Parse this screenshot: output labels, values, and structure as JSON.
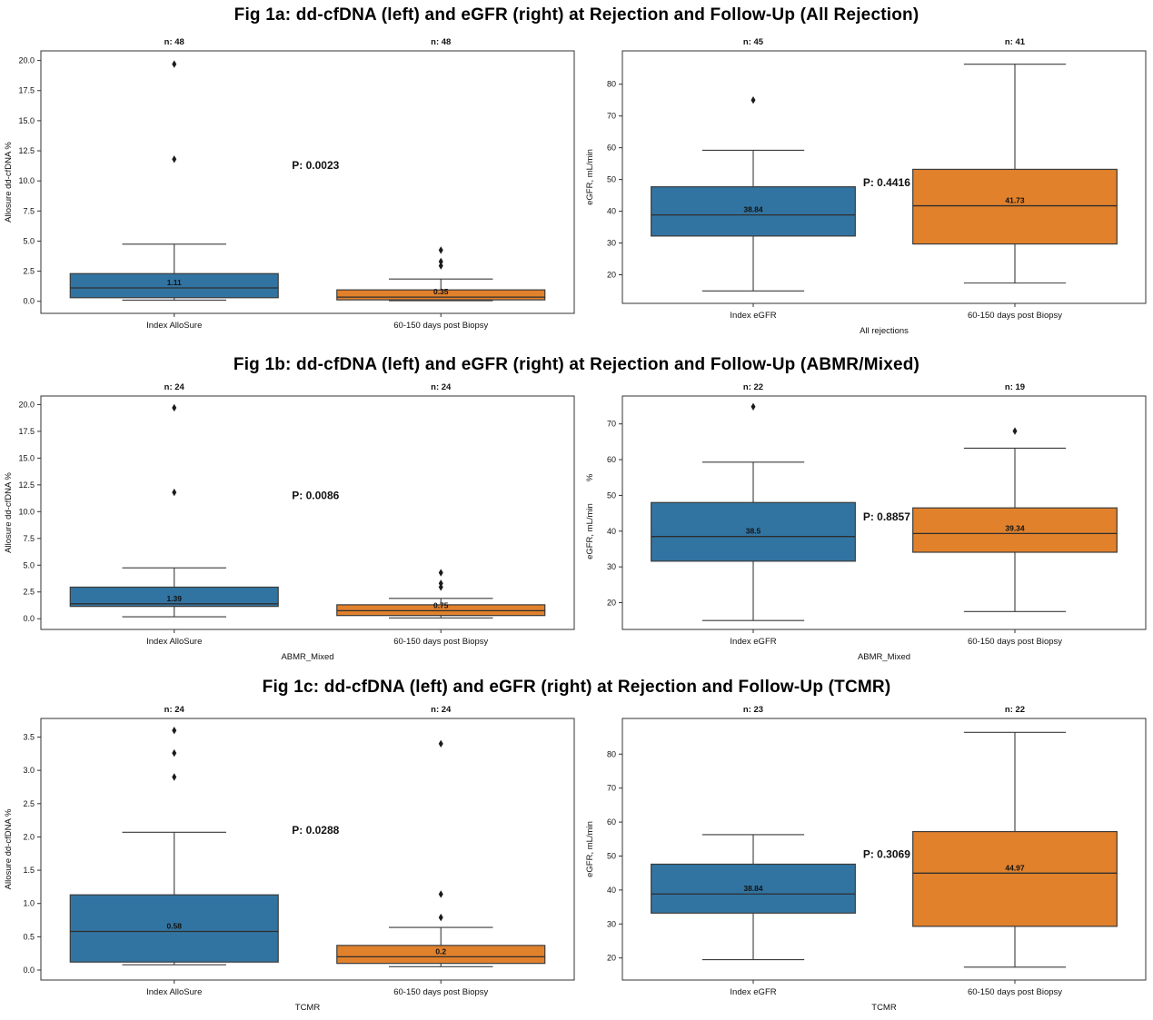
{
  "page": {
    "background": "#ffffff"
  },
  "colors": {
    "blue": "#3274a1",
    "orange": "#e1812c",
    "edge": "#3b3b3b",
    "median_line": "#2e2e2e",
    "whisker": "#3b3b3b",
    "frame": "#333333",
    "outlier": "#1b1b1b",
    "text": "#111111"
  },
  "titles": {
    "fig1a": "Fig 1a: dd-cfDNA (left) and eGFR (right) at Rejection and Follow-Up (All Rejection)",
    "fig1b": "Fig 1b: dd-cfDNA (left) and eGFR (right) at Rejection and Follow-Up (ABMR/Mixed)",
    "fig1c": "Fig 1c: dd-cfDNA (left) and eGFR (right) at Rejection and Follow-Up (TCMR)"
  },
  "chart_data": [
    {
      "id": "fig1a_ddcfdna",
      "type": "box",
      "figure": "fig1a",
      "title": "",
      "ylabel": "Allosure dd-cfDNA %",
      "xlabel": "",
      "ylim": [
        -1.0,
        20.8
      ],
      "grid": false,
      "ytick_values": [
        0.0,
        2.5,
        5.0,
        7.5,
        10.0,
        12.5,
        15.0,
        17.5,
        20.0
      ],
      "ytick_labels": [
        "0.0",
        "2.5",
        "5.0",
        "7.5",
        "10.0",
        "12.5",
        "15.0",
        "17.5",
        "20.0"
      ],
      "categories": [
        "Index AlloSure",
        "60-150 days post Biopsy"
      ],
      "n_labels": [
        "n: 48",
        "n: 48"
      ],
      "p_label": "P: 0.0023",
      "p_pos": {
        "x_frac": 0.515,
        "y": 11.3
      },
      "series": [
        {
          "name": "Index AlloSure",
          "color": "blue",
          "whisker_low": 0.1,
          "q1": 0.3,
          "median": 1.11,
          "q3": 2.3,
          "whisker_high": 4.75,
          "outliers": [
            11.8,
            19.7
          ],
          "median_label": "1.11"
        },
        {
          "name": "60-150 days post Biopsy",
          "color": "orange",
          "whisker_low": 0.05,
          "q1": 0.12,
          "median": 0.35,
          "q3": 0.95,
          "whisker_high": 1.85,
          "outliers": [
            2.95,
            3.3,
            4.25
          ],
          "median_label": "0.35"
        }
      ]
    },
    {
      "id": "fig1a_egfr",
      "type": "box",
      "figure": "fig1a",
      "title": "",
      "ylabel": "eGFR, mL/min",
      "xlabel": "All rejections",
      "ylim": [
        11.0,
        90.5
      ],
      "grid": false,
      "ytick_values": [
        20,
        30,
        40,
        50,
        60,
        70,
        80
      ],
      "ytick_labels": [
        "20",
        "30",
        "40",
        "50",
        "60",
        "70",
        "80"
      ],
      "categories": [
        "Index eGFR",
        "60-150 days post Biopsy"
      ],
      "n_labels": [
        "n: 45",
        "n: 41"
      ],
      "p_label": "P: 0.4416",
      "p_pos": {
        "x_frac": 0.505,
        "y": 49.0
      },
      "series": [
        {
          "name": "Index eGFR",
          "color": "blue",
          "whisker_low": 14.9,
          "q1": 32.2,
          "median": 38.84,
          "q3": 47.7,
          "whisker_high": 59.2,
          "outliers": [
            75.0
          ],
          "median_label": "38.84"
        },
        {
          "name": "60-150 days post Biopsy",
          "color": "orange",
          "whisker_low": 17.4,
          "q1": 29.7,
          "median": 41.73,
          "q3": 53.2,
          "whisker_high": 86.3,
          "outliers": [],
          "median_label": "41.73"
        }
      ]
    },
    {
      "id": "fig1b_ddcfdna",
      "type": "box",
      "figure": "fig1b",
      "title": "",
      "ylabel": "Allosure dd-cfDNA %",
      "xlabel": "ABMR_Mixed",
      "ylim": [
        -1.0,
        20.8
      ],
      "grid": false,
      "ytick_values": [
        0.0,
        2.5,
        5.0,
        7.5,
        10.0,
        12.5,
        15.0,
        17.5,
        20.0
      ],
      "ytick_labels": [
        "0.0",
        "2.5",
        "5.0",
        "7.5",
        "10.0",
        "12.5",
        "15.0",
        "17.5",
        "20.0"
      ],
      "categories": [
        "Index AlloSure",
        "60-150 days post Biopsy"
      ],
      "n_labels": [
        "n: 24",
        "n: 24"
      ],
      "p_label": "P: 0.0086",
      "p_pos": {
        "x_frac": 0.515,
        "y": 11.5
      },
      "series": [
        {
          "name": "Index AlloSure",
          "color": "blue",
          "whisker_low": 0.18,
          "q1": 1.15,
          "median": 1.39,
          "q3": 2.95,
          "whisker_high": 4.75,
          "outliers": [
            11.8,
            19.7
          ],
          "median_label": "1.39"
        },
        {
          "name": "60-150 days post Biopsy",
          "color": "orange",
          "whisker_low": 0.08,
          "q1": 0.3,
          "median": 0.75,
          "q3": 1.3,
          "whisker_high": 1.9,
          "outliers": [
            2.95,
            3.3,
            4.3
          ],
          "median_label": "0.75"
        }
      ]
    },
    {
      "id": "fig1b_egfr",
      "type": "box",
      "figure": "fig1b",
      "title": "",
      "ylabel": "eGFR, mL/min",
      "ylabel_above": "%",
      "xlabel": "ABMR_Mixed",
      "ylim": [
        12.5,
        77.8
      ],
      "grid": false,
      "ytick_values": [
        20,
        30,
        40,
        50,
        60,
        70
      ],
      "ytick_labels": [
        "20",
        "30",
        "40",
        "50",
        "60",
        "70"
      ],
      "categories": [
        "Index eGFR",
        "60-150 days post Biopsy"
      ],
      "n_labels": [
        "n: 22",
        "n: 19"
      ],
      "p_label": "P: 0.8857",
      "p_pos": {
        "x_frac": 0.505,
        "y": 44.0
      },
      "series": [
        {
          "name": "Index eGFR",
          "color": "blue",
          "whisker_low": 15.0,
          "q1": 31.6,
          "median": 38.5,
          "q3": 48.0,
          "whisker_high": 59.3,
          "outliers": [
            74.8
          ],
          "median_label": "38.5"
        },
        {
          "name": "60-150 days post Biopsy",
          "color": "orange",
          "whisker_low": 17.5,
          "q1": 34.1,
          "median": 39.34,
          "q3": 46.5,
          "whisker_high": 63.2,
          "outliers": [
            68.0
          ],
          "median_label": "39.34"
        }
      ]
    },
    {
      "id": "fig1c_ddcfdna",
      "type": "box",
      "figure": "fig1c",
      "title": "",
      "ylabel": "Allosure dd-cfDNA %",
      "xlabel": "TCMR",
      "ylim": [
        -0.15,
        3.78
      ],
      "grid": false,
      "ytick_values": [
        0.0,
        0.5,
        1.0,
        1.5,
        2.0,
        2.5,
        3.0,
        3.5
      ],
      "ytick_labels": [
        "0.0",
        "0.5",
        "1.0",
        "1.5",
        "2.0",
        "2.5",
        "3.0",
        "3.5"
      ],
      "categories": [
        "Index AlloSure",
        "60-150 days post Biopsy"
      ],
      "n_labels": [
        "n: 24",
        "n: 24"
      ],
      "p_label": "P: 0.0288",
      "p_pos": {
        "x_frac": 0.515,
        "y": 2.1
      },
      "series": [
        {
          "name": "Index AlloSure",
          "color": "blue",
          "whisker_low": 0.08,
          "q1": 0.12,
          "median": 0.58,
          "q3": 1.13,
          "whisker_high": 2.07,
          "outliers": [
            2.9,
            3.26,
            3.6
          ],
          "median_label": "0.58"
        },
        {
          "name": "60-150 days post Biopsy",
          "color": "orange",
          "whisker_low": 0.05,
          "q1": 0.1,
          "median": 0.2,
          "q3": 0.37,
          "whisker_high": 0.64,
          "outliers": [
            0.79,
            1.14,
            3.4
          ],
          "median_label": "0.2"
        }
      ]
    },
    {
      "id": "fig1c_egfr",
      "type": "box",
      "figure": "fig1c",
      "title": "",
      "ylabel": "eGFR, mL/min",
      "xlabel": "TCMR",
      "ylim": [
        13.5,
        90.5
      ],
      "grid": false,
      "ytick_values": [
        20,
        30,
        40,
        50,
        60,
        70,
        80
      ],
      "ytick_labels": [
        "20",
        "30",
        "40",
        "50",
        "60",
        "70",
        "80"
      ],
      "categories": [
        "Index eGFR",
        "60-150 days post Biopsy"
      ],
      "n_labels": [
        "n: 23",
        "n: 22"
      ],
      "p_label": "P: 0.3069",
      "p_pos": {
        "x_frac": 0.505,
        "y": 50.5
      },
      "series": [
        {
          "name": "Index eGFR",
          "color": "blue",
          "whisker_low": 19.5,
          "q1": 33.2,
          "median": 38.84,
          "q3": 47.6,
          "whisker_high": 56.3,
          "outliers": [],
          "median_label": "38.84"
        },
        {
          "name": "60-150 days post Biopsy",
          "color": "orange",
          "whisker_low": 17.3,
          "q1": 29.3,
          "median": 44.97,
          "q3": 57.2,
          "whisker_high": 86.4,
          "outliers": [],
          "median_label": "44.97"
        }
      ]
    }
  ]
}
